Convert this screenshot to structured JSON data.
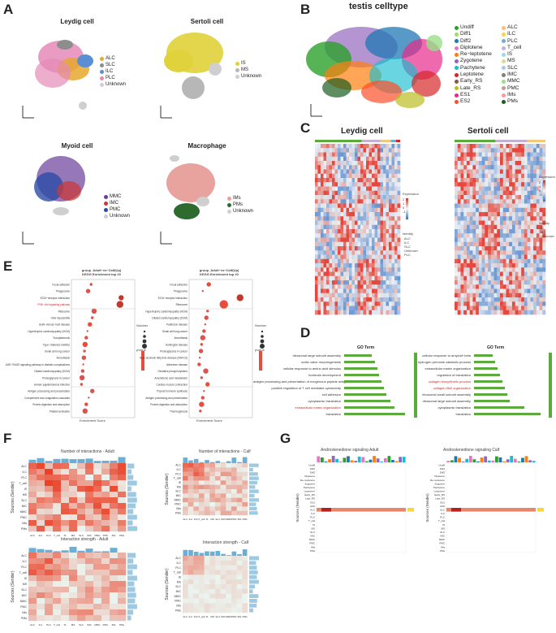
{
  "panels": {
    "a": "A",
    "b": "B",
    "c": "C",
    "d": "D",
    "e": "E",
    "f": "F",
    "g": "G"
  },
  "panel_a": {
    "leydig": {
      "title": "Leydig cell",
      "legend": [
        "ALC",
        "SLC",
        "ILC",
        "PLC",
        "Unknown"
      ],
      "colors": [
        "#e6a82e",
        "#8d8d8d",
        "#5a8fd6",
        "#e58ab8",
        "#cfcfcf"
      ]
    },
    "sertoli": {
      "title": "Sertoli cell",
      "legend": [
        "IS",
        "MS",
        "Unknown"
      ],
      "colors": [
        "#e0d23a",
        "#b7b7b7",
        "#cfcfcf"
      ]
    },
    "myoid": {
      "title": "Myoid cell",
      "legend": [
        "MMC",
        "IMC",
        "PMC",
        "Unknown"
      ],
      "colors": [
        "#6a3d9a",
        "#c73a3a",
        "#2b4ba6",
        "#cfcfcf"
      ]
    },
    "macro": {
      "title": "Macrophage",
      "legend": [
        "IMs",
        "PMs",
        "Unknown"
      ],
      "colors": [
        "#e8a39e",
        "#2e6b2e",
        "#cfcfcf"
      ]
    },
    "axis1": "UMAP1",
    "axis2": "UMAP2"
  },
  "panel_b": {
    "title": "testis celltype",
    "legend_col1": [
      "Undiff",
      "Diff1",
      "Diff2",
      "Diplotene",
      "Re−leptotene",
      "Zygotene",
      "Pachytene",
      "Leptotene",
      "Early_RS",
      "Late_RS",
      "ES1",
      "ES2"
    ],
    "legend_col2": [
      "ALC",
      "ILC",
      "PLC",
      "T_cell",
      "IS",
      "MS",
      "SLC",
      "IMC",
      "MMC",
      "PMC",
      "IMs",
      "PMs"
    ],
    "colors_col1": [
      "#2ca02c",
      "#a6d96a",
      "#1f78b4",
      "#e377c2",
      "#ff7f0e",
      "#9467bd",
      "#17becf",
      "#d62728",
      "#8c564b",
      "#bcbd22",
      "#e7298a",
      "#fc4e2a"
    ],
    "colors_col2": [
      "#ffbb78",
      "#f5d742",
      "#6baed6",
      "#c5b0d5",
      "#9edae5",
      "#dbdb8d",
      "#aec7e8",
      "#7f7f7f",
      "#98df8a",
      "#c49c94",
      "#ff9896",
      "#1b5e20"
    ]
  },
  "panel_c": {
    "leydig_title": "Leydig cell",
    "sertoli_title": "Sertoli cell",
    "expression_label": "Expression",
    "identity_label": "Identity",
    "leydig_identity": [
      "ALC",
      "ILC",
      "SLC",
      "Unknown",
      "PLC"
    ],
    "sertoli_identity": [
      "IS",
      "MS",
      "Unknown"
    ],
    "scale": [
      "2",
      "1",
      "0",
      "-1"
    ]
  },
  "panel_d": {
    "title": "GO Term",
    "left_terms": [
      {
        "label": "ribosomal large subunit assembly",
        "value": 2.1,
        "red": false
      },
      {
        "label": "aortic valve morphogenesis",
        "value": 2.3,
        "red": false
      },
      {
        "label": "cellular response to amino acid stimulus",
        "value": 2.5,
        "red": false
      },
      {
        "label": "forebrain development",
        "value": 2.6,
        "red": false
      },
      {
        "label": "antigen processing and presentation of exogenous peptide antigen via MHC class II",
        "value": 2.8,
        "red": false
      },
      {
        "label": "positive regulation of T cell mediated cytotoxicity",
        "value": 3.0,
        "red": false
      },
      {
        "label": "cell adhesion",
        "value": 3.2,
        "red": false
      },
      {
        "label": "cytoplasmic translation",
        "value": 3.5,
        "red": false
      },
      {
        "label": "extracellular matrix organization",
        "value": 3.8,
        "red": true
      },
      {
        "label": "translation",
        "value": 4.6,
        "red": false
      }
    ],
    "right_terms": [
      {
        "label": "cellular response to amyloid−beta",
        "value": 1.6,
        "red": false
      },
      {
        "label": "hydrogen peroxide catabolic process",
        "value": 1.8,
        "red": false
      },
      {
        "label": "extracellular matrix organization",
        "value": 2.0,
        "red": false
      },
      {
        "label": "regulation of translation",
        "value": 2.2,
        "red": false
      },
      {
        "label": "collagen biosynthetic process",
        "value": 2.4,
        "red": true
      },
      {
        "label": "collagen fibril organization",
        "value": 2.6,
        "red": true
      },
      {
        "label": "ribosomal small subunit assembly",
        "value": 2.8,
        "red": false
      },
      {
        "label": "ribosomal large subunit assembly",
        "value": 3.0,
        "red": false
      },
      {
        "label": "cytoplasmic translation",
        "value": 4.2,
        "red": false
      },
      {
        "label": "translation",
        "value": 5.6,
        "red": false
      }
    ]
  },
  "panel_e": {
    "left_title1": "group_Adult−vs−Calf(Up)",
    "left_title2": "KEGG Enrichment top 20",
    "right_title1": "group_Adult−vs−Calf(Up)",
    "right_title2": "KEGG Enrichment top 20",
    "xlabel": "Enrichment Score",
    "number_label": "Number",
    "pvalue_label": "pvalue",
    "left_terms": [
      "Focal adhesion",
      "Phagosome",
      "ECM−receptor interaction",
      "PI3K−Akt signaling pathway",
      "Ribosome",
      "Viral myocarditis",
      "Graft−versus−host disease",
      "Hypertrophic cardiomyopathy (HCM)",
      "Toxoplasmosis",
      "Type I diabetes mellitus",
      "Small cell lung cancer",
      "Amoebiasis",
      "AGE−RAGE signaling pathway in diabetic complications",
      "Dilated cardiomyopathy (DCM)",
      "Proteoglycans in cancer",
      "Human papillomavirus infection",
      "Antigen processing and presentation",
      "Complement and coagulation cascades",
      "Protein digestion and absorption",
      "Platelet activation"
    ],
    "left_scores": [
      0.3,
      0.25,
      0.8,
      0.78,
      0.35,
      0.32,
      0.28,
      0.24,
      0.22,
      0.2,
      0.19,
      0.18,
      0.17,
      0.16,
      0.15,
      0.14,
      0.32,
      0.26,
      0.22,
      0.2
    ],
    "right_terms": [
      "Focal adhesion",
      "Phagosome",
      "ECM−receptor interaction",
      "Ribosome",
      "Hypertrophic cardiomyopathy (HCM)",
      "Dilated cardiomyopathy (DCM)",
      "Parkinson disease",
      "Small cell lung cancer",
      "Amoebiasis",
      "Huntington disease",
      "Proteoglycans in cancer",
      "Non−alcoholic fatty liver disease (NAFLD)",
      "Alzheimer disease",
      "Oxidative phosphorylation",
      "Arachidonic acid metabolism",
      "Cardiac muscle contraction",
      "Thyroid hormone synthesis",
      "Antigen processing and presentation",
      "Protein digestion and absorption",
      "Thermogenesis"
    ],
    "right_scores": [
      0.3,
      0.2,
      0.82,
      0.55,
      0.28,
      0.26,
      0.24,
      0.22,
      0.2,
      0.18,
      0.17,
      0.15,
      0.14,
      0.25,
      0.18,
      0.28,
      0.22,
      0.2,
      0.18,
      0.16
    ],
    "highlight": "PI3K−Akt signaling pathway"
  },
  "panel_f": {
    "t1": "Number of interactions - Adult",
    "t2": "Number of interactions - Calf",
    "t3": "Interaction strength - Adult",
    "t4": "Interaction strength - Calf",
    "ylabel": "Sources (Sender)",
    "row_labels": [
      "ALC",
      "ILC",
      "PLC",
      "T_cell",
      "IS",
      "MS",
      "SLC",
      "IMC",
      "MMC",
      "PMC",
      "IMs",
      "PMs"
    ]
  },
  "panel_g": {
    "t1": "Androstenedione signaling  Adult",
    "t2": "Androstenedione signaling  Calf",
    "ylabel": "Sources (Sender)",
    "row_labels": [
      "Undiff",
      "Diff1",
      "Diff2",
      "Diplotene",
      "Re−leptotene",
      "Zygotene",
      "Pachytene",
      "Leptotene",
      "Early_RS",
      "Late_RS",
      "ES1",
      "ES2",
      "ALC",
      "ILC",
      "PLC",
      "T_cell",
      "IS",
      "MS",
      "SLC",
      "IMC",
      "MMC",
      "PMC",
      "IMs",
      "PMs"
    ]
  }
}
